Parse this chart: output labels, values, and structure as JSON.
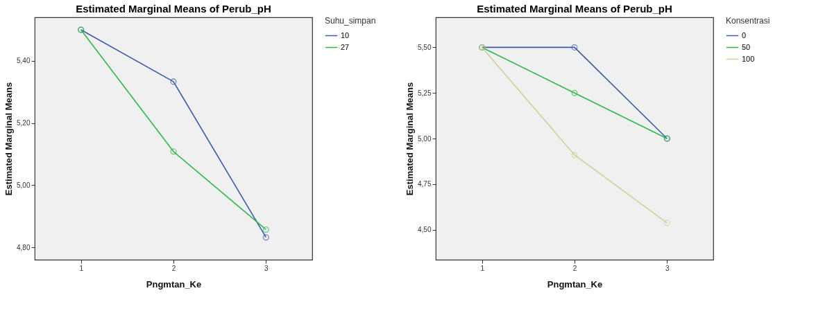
{
  "chart_data": [
    {
      "type": "line",
      "title": "Estimated Marginal Means of Perub_pH",
      "xlabel": "Pngmtan_Ke",
      "ylabel": "Estimated Marginal Means",
      "legend_title": "Suhu_simpan",
      "categories": [
        "1",
        "2",
        "3"
      ],
      "series": [
        {
          "name": "10",
          "color": "#3e58ac",
          "values": [
            5.5,
            5.333,
            4.832
          ]
        },
        {
          "name": "27",
          "color": "#2eb848",
          "values": [
            5.5,
            5.108,
            4.857
          ]
        }
      ],
      "ylim": [
        4.76,
        5.54
      ],
      "yticks": [
        {
          "value": 4.8,
          "label": "4,80"
        },
        {
          "value": 5.0,
          "label": "5,00"
        },
        {
          "value": 5.2,
          "label": "5,20"
        },
        {
          "value": 5.4,
          "label": "5,40"
        }
      ],
      "marker": "circle",
      "grid": false,
      "legend": "top right"
    },
    {
      "type": "line",
      "title": "Estimated Marginal Means of Perub_pH",
      "xlabel": "Pngmtan_Ke",
      "ylabel": "Estimated Marginal Means",
      "legend_title": "Konsentrasi",
      "categories": [
        "1",
        "2",
        "3"
      ],
      "series": [
        {
          "name": "0",
          "color": "#3e58ac",
          "values": [
            5.5,
            5.5,
            5.0
          ]
        },
        {
          "name": "50",
          "color": "#2eb848",
          "values": [
            5.5,
            5.25,
            5.0
          ]
        },
        {
          "name": "100",
          "color": "#d3ce97",
          "values": [
            5.5,
            4.91,
            4.537
          ]
        }
      ],
      "ylim": [
        4.335,
        5.665
      ],
      "yticks": [
        {
          "value": 4.5,
          "label": "4,50"
        },
        {
          "value": 4.75,
          "label": "4,75"
        },
        {
          "value": 5.0,
          "label": "5,00"
        },
        {
          "value": 5.25,
          "label": "5,25"
        },
        {
          "value": 5.5,
          "label": "5,50"
        }
      ],
      "marker": "circle",
      "grid": false,
      "legend": "top right"
    }
  ]
}
